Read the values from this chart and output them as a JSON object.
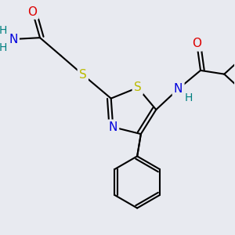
{
  "bg_color": "#e8eaf0",
  "atom_colors": {
    "C": "#000000",
    "N": "#0000dd",
    "O": "#dd0000",
    "S": "#bbbb00",
    "H": "#008080"
  },
  "bond_lw": 1.5,
  "font_size": 11,
  "font_size_h": 10
}
